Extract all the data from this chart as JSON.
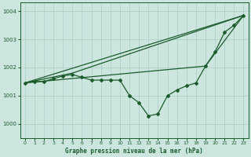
{
  "title": "Graphe pression niveau de la mer (hPa)",
  "bg_color": "#cce5df",
  "grid_color": "#aacfc8",
  "line_color": "#1a5c2a",
  "xlim": [
    -0.5,
    23.5
  ],
  "ylim": [
    999.5,
    1004.3
  ],
  "yticks": [
    1000,
    1001,
    1002,
    1003,
    1004
  ],
  "xticks": [
    0,
    1,
    2,
    3,
    4,
    5,
    6,
    7,
    8,
    9,
    10,
    11,
    12,
    13,
    14,
    15,
    16,
    17,
    18,
    19,
    20,
    21,
    22,
    23
  ],
  "line1_x": [
    0,
    23
  ],
  "line1_y": [
    1001.45,
    1003.85
  ],
  "line2_x": [
    0,
    19,
    23
  ],
  "line2_y": [
    1001.45,
    1002.05,
    1003.85
  ],
  "line3_x": [
    0,
    5,
    23
  ],
  "line3_y": [
    1001.45,
    1001.8,
    1003.85
  ],
  "series_main_x": [
    0,
    1,
    2,
    3,
    4,
    5,
    6,
    7,
    8,
    9,
    10,
    11,
    12,
    13,
    14,
    15,
    16,
    17,
    18,
    19,
    20,
    21,
    22,
    23
  ],
  "series_main_y": [
    1001.45,
    1001.5,
    1001.5,
    1001.6,
    1001.7,
    1001.75,
    1001.65,
    1001.55,
    1001.55,
    1001.55,
    1001.55,
    1001.0,
    1000.75,
    1000.28,
    1000.35,
    1001.0,
    1001.2,
    1001.35,
    1001.45,
    1002.05,
    1002.55,
    1003.25,
    1003.5,
    1003.85
  ]
}
